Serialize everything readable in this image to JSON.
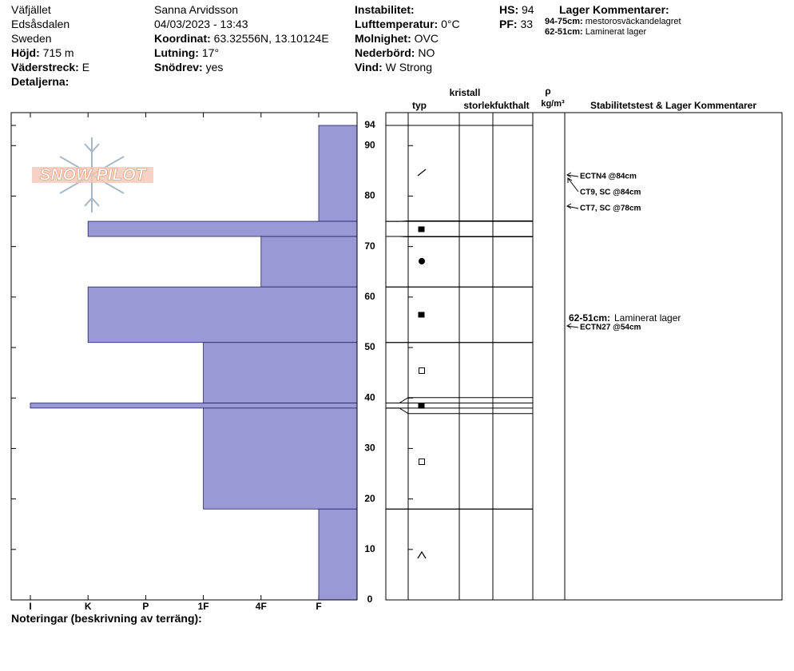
{
  "header": {
    "columns": [
      [
        {
          "value": "Väfjället"
        },
        {
          "value": "Edsåsdalen"
        },
        {
          "value": "Sweden"
        },
        {
          "label": "Höjd:",
          "value": "715 m"
        },
        {
          "label": "Väderstreck:",
          "value": "E"
        },
        {
          "label": "Detaljerna:"
        }
      ],
      [
        {
          "value": "Sanna Arvidsson"
        },
        {
          "value": "04/03/2023 - 13:43"
        },
        {
          "label": "Koordinat:",
          "value": "63.32556N, 13.10124E"
        },
        {
          "label": "Lutning:",
          "value": "17°"
        },
        {
          "label": "Snödrev:",
          "value": "yes"
        }
      ],
      [
        {
          "label": "Instabilitet:"
        },
        {
          "label": "Lufttemperatur:",
          "value": "0°C"
        },
        {
          "label": "Molnighet:",
          "value": "OVC"
        },
        {
          "label": "Nederbörd:",
          "value": "NO"
        },
        {
          "label": "Vind:",
          "value": "W Strong"
        }
      ],
      [
        {
          "label": "HS:",
          "value": 94
        },
        {
          "label": "PF:",
          "value": 33
        }
      ]
    ],
    "layer_comments_title": "Lager Kommentarer:",
    "layer_comments": [
      {
        "label": "94-75cm:",
        "value": "mestorosväckandelagret"
      },
      {
        "label": "62-51cm:",
        "value": "Laminerat lager"
      }
    ]
  },
  "logo": "SNOW PILOT",
  "hardness_chart": {
    "type": "bar",
    "color": "#9999d6",
    "ylim": [
      0,
      94
    ],
    "yticks": [
      0,
      10,
      20,
      30,
      40,
      50,
      60,
      70,
      80,
      90,
      94
    ],
    "xticks": [
      "I",
      "K",
      "P",
      "1F",
      "4F",
      "F"
    ],
    "layers": [
      {
        "top": 94,
        "bottom": 75,
        "hardness": "F"
      },
      {
        "top": 75,
        "bottom": 72,
        "hardness": "K"
      },
      {
        "top": 72,
        "bottom": 62,
        "hardness": "4F"
      },
      {
        "top": 62,
        "bottom": 51,
        "hardness": "K"
      },
      {
        "top": 51,
        "bottom": 39,
        "hardness": "1F"
      },
      {
        "top": 39,
        "bottom": 38,
        "hardness": "I"
      },
      {
        "top": 38,
        "bottom": 18,
        "hardness": "1F"
      },
      {
        "top": 18,
        "bottom": 0,
        "hardness": "F"
      }
    ]
  },
  "table_headers": {
    "crystal": "kristall",
    "type": "typ",
    "size": "storlek",
    "moisture": "fukthalt",
    "rho": "ρ",
    "density_unit": "kg/m³",
    "comments": "Stabilitetstest & Lager Kommentarer"
  },
  "stability_tests": [
    "ECTN4 @84cm",
    "CT9, SC @84cm",
    "CT7, SC @78cm",
    "ECTN27 @54cm"
  ],
  "footer": "Noteringar (beskrivning av terräng):"
}
